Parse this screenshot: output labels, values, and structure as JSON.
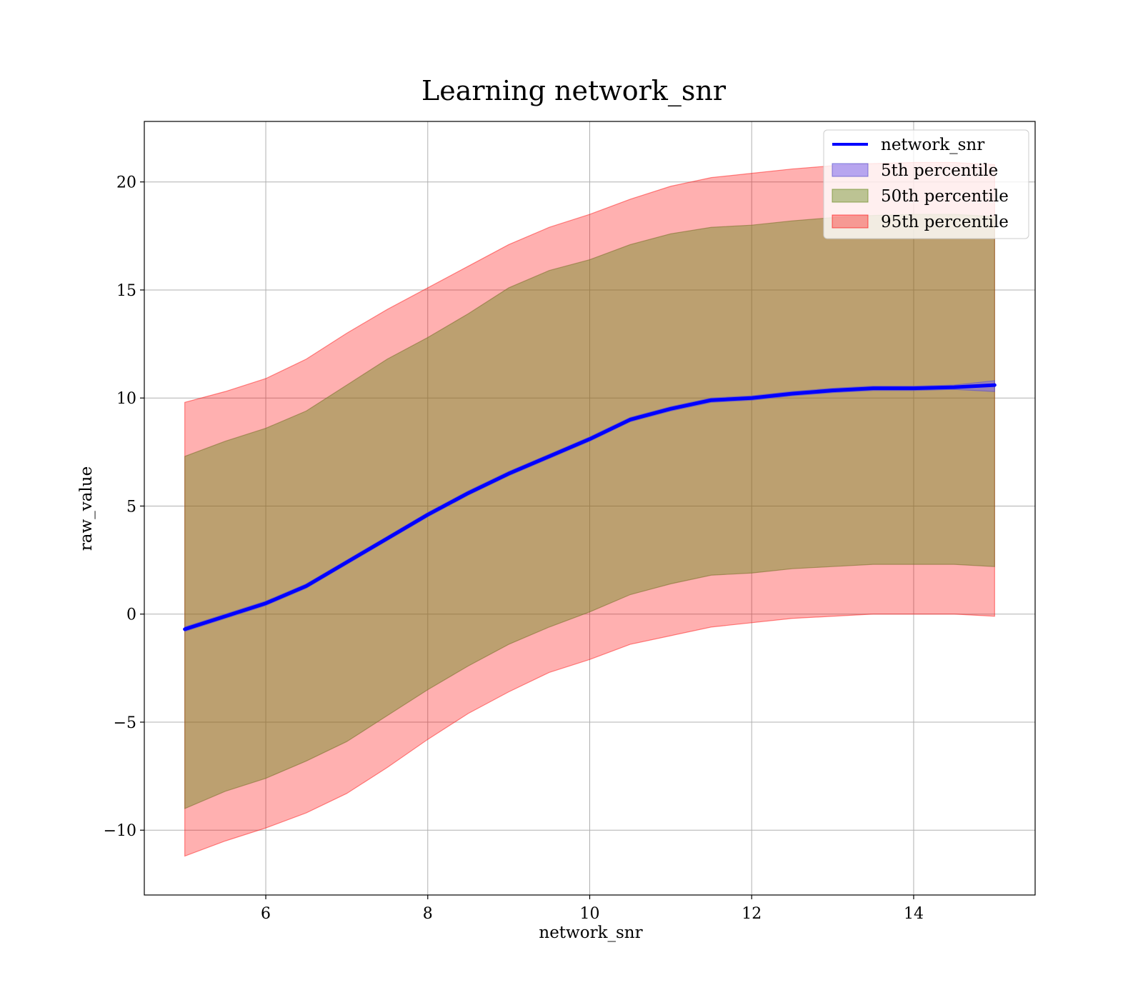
{
  "chart_data": {
    "type": "area",
    "title": "Learning network_snr",
    "xlabel": "network_snr",
    "ylabel": "raw_value",
    "xlim": [
      4.5,
      15.5
    ],
    "ylim": [
      -13,
      22.8
    ],
    "xticks": [
      6,
      8,
      10,
      12,
      14
    ],
    "yticks": [
      -10,
      -5,
      0,
      5,
      10,
      15,
      20
    ],
    "grid": true,
    "legend_position": "top-right",
    "x": [
      5,
      5.5,
      6,
      6.5,
      7,
      7.5,
      8,
      8.5,
      9,
      9.5,
      10,
      10.5,
      11,
      11.5,
      12,
      12.5,
      13,
      13.5,
      14,
      14.5,
      15
    ],
    "series": [
      {
        "name": "network_snr",
        "kind": "line",
        "color": "#0000ff",
        "values": [
          -0.7,
          -0.1,
          0.5,
          1.3,
          2.4,
          3.5,
          4.6,
          5.6,
          6.5,
          7.3,
          8.1,
          9.0,
          9.5,
          9.9,
          10.0,
          10.2,
          10.35,
          10.45,
          10.45,
          10.5,
          10.6
        ]
      },
      {
        "name": "5th percentile",
        "kind": "band",
        "color": "#7b68ee",
        "lower": [
          -0.8,
          -0.2,
          0.4,
          1.2,
          2.3,
          3.4,
          4.5,
          5.5,
          6.4,
          7.2,
          8.0,
          8.9,
          9.4,
          9.8,
          9.9,
          10.1,
          10.25,
          10.35,
          10.35,
          10.4,
          10.3
        ],
        "upper": [
          -0.6,
          0.0,
          0.6,
          1.4,
          2.5,
          3.6,
          4.7,
          5.7,
          6.6,
          7.4,
          8.2,
          9.1,
          9.6,
          10.0,
          10.1,
          10.3,
          10.45,
          10.55,
          10.55,
          10.6,
          10.8
        ]
      },
      {
        "name": "50th percentile",
        "kind": "band",
        "color": "#6b8e23",
        "lower": [
          -9.0,
          -8.2,
          -7.6,
          -6.8,
          -5.9,
          -4.7,
          -3.5,
          -2.4,
          -1.4,
          -0.6,
          0.1,
          0.9,
          1.4,
          1.8,
          1.9,
          2.1,
          2.2,
          2.3,
          2.3,
          2.3,
          2.2
        ],
        "upper": [
          7.3,
          8.0,
          8.6,
          9.4,
          10.6,
          11.8,
          12.8,
          13.9,
          15.1,
          15.9,
          16.4,
          17.1,
          17.6,
          17.9,
          18.0,
          18.2,
          18.35,
          18.45,
          18.5,
          18.5,
          18.4
        ]
      },
      {
        "name": "95th percentile",
        "kind": "band",
        "color": "#ff0000",
        "lower": [
          -11.2,
          -10.5,
          -9.9,
          -9.2,
          -8.3,
          -7.1,
          -5.8,
          -4.6,
          -3.6,
          -2.7,
          -2.1,
          -1.4,
          -1.0,
          -0.6,
          -0.4,
          -0.2,
          -0.1,
          0.0,
          0.0,
          0.0,
          -0.1
        ],
        "upper": [
          9.8,
          10.3,
          10.9,
          11.8,
          13.0,
          14.1,
          15.1,
          16.1,
          17.1,
          17.9,
          18.5,
          19.2,
          19.8,
          20.2,
          20.4,
          20.6,
          20.75,
          20.85,
          20.9,
          20.9,
          20.8
        ]
      }
    ]
  }
}
